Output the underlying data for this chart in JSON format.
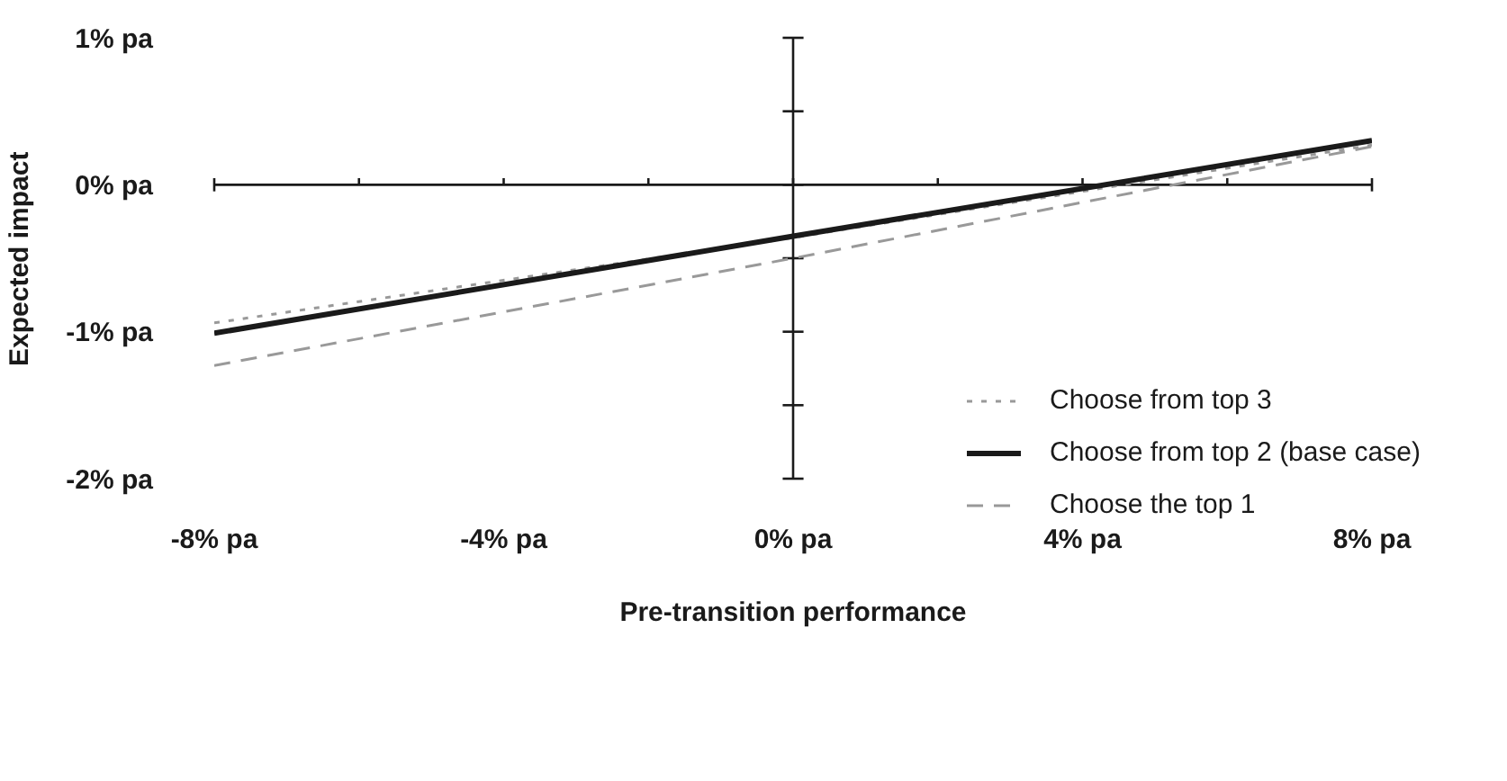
{
  "chart_data": {
    "type": "line",
    "xlabel": "Pre-transition performance",
    "ylabel": "Expected impact",
    "x": [
      -8,
      0,
      8
    ],
    "series": [
      {
        "name": "Choose from top 3",
        "color": "#999999",
        "line_style": "dotted",
        "values": [
          -0.94,
          -0.36,
          0.27
        ]
      },
      {
        "name": "Choose from top 2 (base case)",
        "color": "#1a1a1a",
        "line_style": "solid",
        "values": [
          -1.01,
          -0.35,
          0.3
        ]
      },
      {
        "name": "Choose the top 1",
        "color": "#999999",
        "line_style": "dashed",
        "values": [
          -1.23,
          -0.5,
          0.26
        ]
      }
    ],
    "xlim": [
      -8,
      8
    ],
    "xticks": [
      {
        "value": -8,
        "label": "-8% pa"
      },
      {
        "value": -6,
        "label": null
      },
      {
        "value": -4,
        "label": "-4% pa"
      },
      {
        "value": -2,
        "label": null
      },
      {
        "value": 0,
        "label": "0% pa"
      },
      {
        "value": 2,
        "label": null
      },
      {
        "value": 4,
        "label": "4% pa"
      },
      {
        "value": 6,
        "label": null
      },
      {
        "value": 8,
        "label": "8% pa"
      }
    ],
    "ylim": [
      -2,
      1
    ],
    "yticks": [
      {
        "value": 1,
        "label": "1% pa"
      },
      {
        "value": 0.5,
        "label": null
      },
      {
        "value": 0,
        "label": "0% pa"
      },
      {
        "value": -0.5,
        "label": null
      },
      {
        "value": -1,
        "label": "-1% pa"
      },
      {
        "value": -1.5,
        "label": null
      },
      {
        "value": -2,
        "label": "-2% pa"
      }
    ],
    "legend": "right",
    "marker": "none"
  }
}
